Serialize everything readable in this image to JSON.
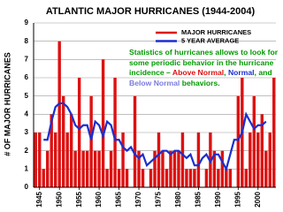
{
  "chart_data": {
    "type": "bar",
    "title": "ATLANTIC MAJOR HURRICANES (1944-2004)",
    "ylabel": "# OF MAJOR HURRICANES",
    "x": [
      1944,
      1945,
      1946,
      1947,
      1948,
      1949,
      1950,
      1951,
      1952,
      1953,
      1954,
      1955,
      1956,
      1957,
      1958,
      1959,
      1960,
      1961,
      1962,
      1963,
      1964,
      1965,
      1966,
      1967,
      1968,
      1969,
      1970,
      1971,
      1972,
      1973,
      1974,
      1975,
      1976,
      1977,
      1978,
      1979,
      1980,
      1981,
      1982,
      1983,
      1984,
      1985,
      1986,
      1987,
      1988,
      1989,
      1990,
      1991,
      1992,
      1993,
      1994,
      1995,
      1996,
      1997,
      1998,
      1999,
      2000,
      2001,
      2002,
      2003,
      2004
    ],
    "series": [
      {
        "name": "MAJOR HURRICANES",
        "color": "#dd1111",
        "kind": "bar",
        "values": [
          3,
          3,
          1,
          2,
          4,
          3,
          8,
          5,
          3,
          4,
          2,
          6,
          2,
          2,
          5,
          2,
          2,
          7,
          1,
          2,
          6,
          1,
          3,
          1,
          0,
          5,
          2,
          1,
          0,
          1,
          2,
          3,
          2,
          1,
          2,
          2,
          2,
          3,
          1,
          1,
          1,
          3,
          0,
          1,
          3,
          2,
          1,
          2,
          1,
          1,
          0,
          5,
          6,
          1,
          3,
          5,
          3,
          4,
          2,
          3,
          6
        ]
      },
      {
        "name": "5  YEAR AVERAGE",
        "color": "#1a2fd0",
        "kind": "line",
        "values": [
          null,
          null,
          2.6,
          2.6,
          3.6,
          4.4,
          4.6,
          4.6,
          4.4,
          4.0,
          3.4,
          3.2,
          3.4,
          3.4,
          2.6,
          3.6,
          3.4,
          2.8,
          3.6,
          3.4,
          2.6,
          2.6,
          2.2,
          2.0,
          2.2,
          1.8,
          1.6,
          1.8,
          1.2,
          1.4,
          1.6,
          1.8,
          2.0,
          2.0,
          1.8,
          2.0,
          2.0,
          1.8,
          1.6,
          1.8,
          1.2,
          1.2,
          1.6,
          1.8,
          1.4,
          1.8,
          1.8,
          1.4,
          1.0,
          1.8,
          2.6,
          2.6,
          3.0,
          4.0,
          3.6,
          3.2,
          3.4,
          3.4,
          3.6,
          null,
          null
        ]
      }
    ],
    "xlim": [
      1943.5,
      2004.5
    ],
    "xticks": [
      1945,
      1950,
      1955,
      1960,
      1965,
      1970,
      1975,
      1980,
      1985,
      1990,
      1995,
      2000
    ],
    "ylim": [
      0,
      9
    ],
    "yticks": [
      0,
      1,
      2,
      3,
      4,
      5,
      6,
      7,
      8,
      9
    ],
    "grid": true,
    "annotation": [
      [
        {
          "text": "Statistics of hurricanes allows to look for",
          "color": "#009900"
        }
      ],
      [
        {
          "text": "some periodic behavior in the hurricane",
          "color": "#009900"
        }
      ],
      [
        {
          "text": "incidence – ",
          "color": "#009900"
        },
        {
          "text": "Above Normal",
          "color": "#dd1111"
        },
        {
          "text": ", ",
          "color": "#009900"
        },
        {
          "text": "Normal",
          "color": "#1a2fd0"
        },
        {
          "text": ", and",
          "color": "#009900"
        }
      ],
      [
        {
          "text": "Below Normal",
          "color": "#7b7be0"
        },
        {
          "text": " behaviors.",
          "color": "#009900"
        }
      ]
    ]
  }
}
